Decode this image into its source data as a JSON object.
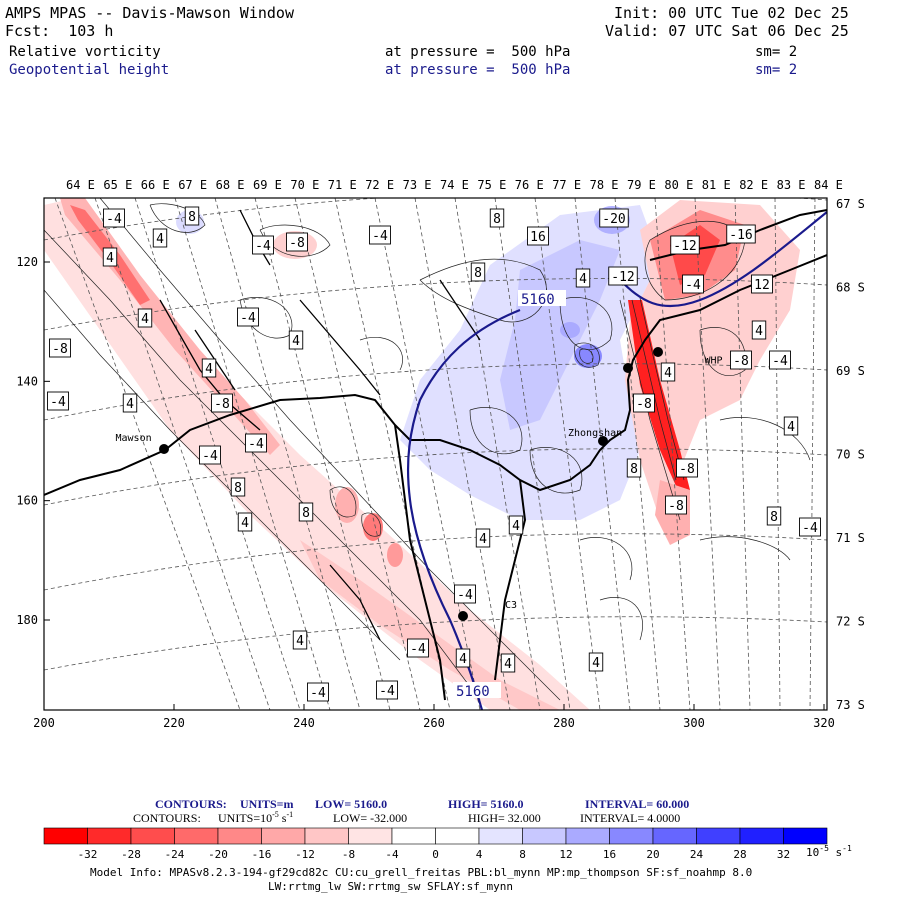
{
  "header": {
    "title": "AMPS MPAS -- Davis-Mawson Window",
    "forecast": "Fcst:  103 h",
    "init": "Init: 00 UTC Tue 02 Dec 25",
    "valid": "Valid: 07 UTC Sat 06 Dec 25",
    "field1": {
      "name": "Relative vorticity",
      "pressure": "at pressure =  500 hPa",
      "sm": "sm= 2"
    },
    "field2": {
      "name": "Geopotential height",
      "pressure": "at pressure =  500 hPa",
      "sm": "sm= 2"
    }
  },
  "map": {
    "lon_labels": [
      "64 E",
      "65 E",
      "66 E",
      "67 E",
      "68 E",
      "69 E",
      "70 E",
      "71 E",
      "72 E",
      "73 E",
      "74 E",
      "75 E",
      "76 E",
      "77 E",
      "78 E",
      "79 E",
      "80 E",
      "81 E",
      "82 E",
      "83 E",
      "84 E"
    ],
    "lat_labels": [
      "67 S",
      "68 S",
      "69 S",
      "70 S",
      "71 S",
      "72 S",
      "73 S"
    ],
    "x_ticks": [
      "200",
      "220",
      "240",
      "260",
      "280",
      "300",
      "320"
    ],
    "y_ticks": [
      "120",
      "140",
      "160",
      "180"
    ],
    "stations": [
      {
        "name": "Mawson",
        "x": 219,
        "y": 151
      },
      {
        "name": "Zhongshan",
        "x": 292,
        "y": 150
      },
      {
        "name": "WHP",
        "x": 301,
        "y": 136
      },
      {
        "name": "C3",
        "x": 270,
        "y": 179
      }
    ],
    "height_contour_labels": [
      "5160",
      "5160"
    ],
    "vorticity_labels": [
      "-4",
      "8",
      "4",
      "-4",
      "-8",
      "-4",
      "8",
      "16",
      "-20",
      "-12",
      "-16",
      "4",
      "8",
      "4",
      "-12",
      "-4",
      "12",
      "4",
      "-4",
      "4",
      "-8",
      "4",
      "4",
      "-4",
      "4",
      "-8",
      "4",
      "-8",
      "-4",
      "-8",
      "-4",
      "-4",
      "8",
      "-8",
      "8",
      "-8",
      "8",
      "4",
      "8",
      "4",
      "-4",
      "4",
      "4",
      "-4",
      "-4",
      "4",
      "4",
      "4",
      "-4",
      "-4",
      "4"
    ],
    "colors": {
      "height_contour": "#1a1a8c",
      "coast": "#000000"
    }
  },
  "footer": {
    "contours1": {
      "label": "CONTOURS:",
      "units": "UNITS=m",
      "low": "LOW=  5160.0",
      "high": "HIGH=  5160.0",
      "interval": "INTERVAL=   60.000"
    },
    "contours2": {
      "label": "CONTOURS:",
      "units_prefix": "UNITS=10",
      "units_exp": "-5",
      "units_suffix": " s",
      "units_suffix_exp": "-1",
      "low": "LOW= -32.000",
      "high": "HIGH=  32.000",
      "interval": "INTERVAL=   4.0000"
    },
    "colorbar": {
      "ticks": [
        "-32",
        "-28",
        "-24",
        "-20",
        "-16",
        "-12",
        "-8",
        "-4",
        "0",
        "4",
        "8",
        "12",
        "16",
        "20",
        "24",
        "28",
        "32"
      ],
      "colors": [
        "#ff0000",
        "#ff2a2a",
        "#ff4d4d",
        "#ff6a6a",
        "#ff8888",
        "#ffa8a8",
        "#ffc6c6",
        "#ffe4e4",
        "#ffffff",
        "#ffffff",
        "#e4e4ff",
        "#c8c8ff",
        "#aaaaff",
        "#8888ff",
        "#6666ff",
        "#4040ff",
        "#2020ff",
        "#0000ff"
      ],
      "unit": "10",
      "unit_exp": "-5",
      "unit_s": " s",
      "unit_s_exp": "-1"
    },
    "model_info": "Model Info: MPASv8.2.3-194-gf29cd82c CU:cu_grell_freitas PBL:bl_mynn MP:mp_thompson SF:sf_noahmp 8.0",
    "model_info2": "LW:rrtmg_lw SW:rrtmg_sw SFLAY:sf_mynn"
  }
}
